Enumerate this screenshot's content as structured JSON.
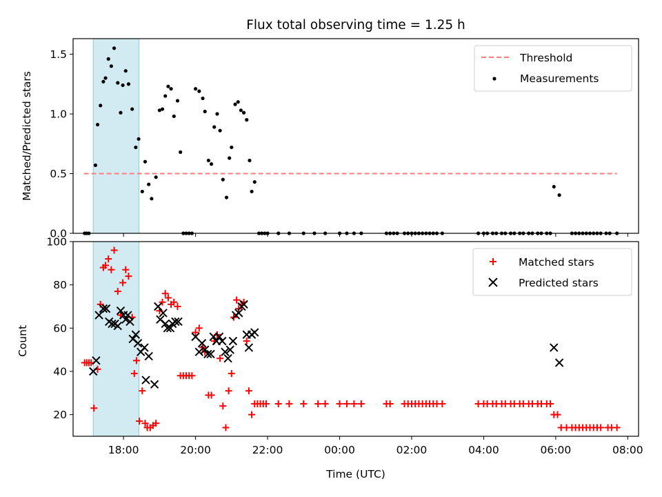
{
  "title": "Flux total observing time = 1.25 h",
  "x_tick_labels": [
    "18:00",
    "20:00",
    "22:00",
    "00:00",
    "02:00",
    "04:00",
    "06:00",
    "08:00"
  ],
  "xlabel": "Time (UTC)",
  "colors": {
    "threshold": "#ff7b7b",
    "measurements": "#000000",
    "matched": "#ff0000",
    "predicted": "#000000",
    "span": "#add8e6"
  },
  "chart_data": [
    {
      "type": "scatter",
      "ylabel": "Matched/Predicted stars",
      "xlim": [
        16.6,
        32.3
      ],
      "ylim": [
        0,
        1.63
      ],
      "yticks": [
        0.0,
        0.5,
        1.0,
        1.5
      ],
      "y_tick_labels": [
        "0.0",
        "0.5",
        "1.0",
        "1.5"
      ],
      "highlight_span": [
        17.16,
        18.43
      ],
      "legend": [
        "Threshold",
        "Measurements"
      ],
      "legend_position": "top-right",
      "threshold": {
        "value": 0.5,
        "x_range": [
          16.9,
          31.7
        ]
      },
      "measurements": [
        [
          16.92,
          0
        ],
        [
          16.98,
          0
        ],
        [
          17.04,
          0
        ],
        [
          17.22,
          0.57
        ],
        [
          17.28,
          0.91
        ],
        [
          17.36,
          1.07
        ],
        [
          17.44,
          1.27
        ],
        [
          17.5,
          1.3
        ],
        [
          17.58,
          1.46
        ],
        [
          17.66,
          1.4
        ],
        [
          17.74,
          1.55
        ],
        [
          17.84,
          1.26
        ],
        [
          17.92,
          1.01
        ],
        [
          17.98,
          1.24
        ],
        [
          18.06,
          1.36
        ],
        [
          18.14,
          1.25
        ],
        [
          18.24,
          1.04
        ],
        [
          18.34,
          0.72
        ],
        [
          18.42,
          0.79
        ],
        [
          18.52,
          0.35
        ],
        [
          18.6,
          0.6
        ],
        [
          18.7,
          0.41
        ],
        [
          18.78,
          0.29
        ],
        [
          18.9,
          0.47
        ],
        [
          19.0,
          1.03
        ],
        [
          19.08,
          1.04
        ],
        [
          19.16,
          1.15
        ],
        [
          19.24,
          1.23
        ],
        [
          19.32,
          1.21
        ],
        [
          19.4,
          0.98
        ],
        [
          19.5,
          1.11
        ],
        [
          19.58,
          0.68
        ],
        [
          19.66,
          0
        ],
        [
          19.74,
          0
        ],
        [
          19.82,
          0
        ],
        [
          19.9,
          0
        ],
        [
          20.0,
          1.21
        ],
        [
          20.1,
          1.19
        ],
        [
          20.2,
          1.13
        ],
        [
          20.26,
          1.02
        ],
        [
          20.36,
          0.61
        ],
        [
          20.44,
          0.58
        ],
        [
          20.52,
          0.89
        ],
        [
          20.6,
          1.0
        ],
        [
          20.68,
          0.86
        ],
        [
          20.76,
          0.45
        ],
        [
          20.86,
          0.3
        ],
        [
          20.94,
          0.63
        ],
        [
          21.0,
          0.72
        ],
        [
          21.1,
          1.08
        ],
        [
          21.18,
          1.1
        ],
        [
          21.26,
          1.03
        ],
        [
          21.34,
          1.01
        ],
        [
          21.42,
          0.95
        ],
        [
          21.5,
          0.61
        ],
        [
          21.56,
          0.35
        ],
        [
          21.64,
          0.43
        ],
        [
          21.76,
          0
        ],
        [
          21.84,
          0
        ],
        [
          21.92,
          0
        ],
        [
          22.0,
          0
        ],
        [
          22.3,
          0
        ],
        [
          22.6,
          0
        ],
        [
          23.0,
          0
        ],
        [
          23.3,
          0
        ],
        [
          23.6,
          0
        ],
        [
          24.0,
          0
        ],
        [
          24.2,
          0
        ],
        [
          24.4,
          0
        ],
        [
          24.6,
          0
        ],
        [
          25.3,
          0
        ],
        [
          25.4,
          0
        ],
        [
          25.5,
          0
        ],
        [
          25.6,
          0
        ],
        [
          25.8,
          0
        ],
        [
          25.9,
          0
        ],
        [
          26.0,
          0
        ],
        [
          26.1,
          0
        ],
        [
          26.2,
          0
        ],
        [
          26.3,
          0
        ],
        [
          26.4,
          0
        ],
        [
          26.5,
          0
        ],
        [
          26.6,
          0
        ],
        [
          26.7,
          0
        ],
        [
          26.85,
          0
        ],
        [
          27.85,
          0
        ],
        [
          28.0,
          0
        ],
        [
          28.1,
          0
        ],
        [
          28.25,
          0
        ],
        [
          28.35,
          0
        ],
        [
          28.5,
          0
        ],
        [
          28.6,
          0
        ],
        [
          28.75,
          0
        ],
        [
          28.85,
          0
        ],
        [
          29.0,
          0
        ],
        [
          29.1,
          0
        ],
        [
          29.25,
          0
        ],
        [
          29.35,
          0
        ],
        [
          29.5,
          0
        ],
        [
          29.6,
          0
        ],
        [
          29.75,
          0
        ],
        [
          29.85,
          0
        ],
        [
          29.95,
          0.39
        ],
        [
          30.1,
          0.32
        ],
        [
          30.45,
          0
        ],
        [
          30.55,
          0
        ],
        [
          30.65,
          0
        ],
        [
          30.75,
          0
        ],
        [
          30.85,
          0
        ],
        [
          30.95,
          0
        ],
        [
          31.05,
          0
        ],
        [
          31.15,
          0
        ],
        [
          31.25,
          0
        ],
        [
          31.4,
          0
        ],
        [
          31.5,
          0
        ],
        [
          31.7,
          0
        ]
      ]
    },
    {
      "type": "scatter",
      "ylabel": "Count",
      "xlim": [
        16.6,
        32.3
      ],
      "ylim": [
        10,
        100
      ],
      "yticks": [
        20,
        40,
        60,
        80,
        100
      ],
      "y_tick_labels": [
        "20",
        "40",
        "60",
        "80",
        "100"
      ],
      "highlight_span": [
        17.16,
        18.43
      ],
      "legend": [
        "Matched stars",
        "Predicted stars"
      ],
      "legend_position": "top-right",
      "matched": [
        [
          16.92,
          44
        ],
        [
          16.98,
          44
        ],
        [
          17.04,
          44
        ],
        [
          17.1,
          44
        ],
        [
          17.18,
          23
        ],
        [
          17.28,
          41
        ],
        [
          17.36,
          71
        ],
        [
          17.44,
          88
        ],
        [
          17.5,
          89
        ],
        [
          17.58,
          92
        ],
        [
          17.66,
          87
        ],
        [
          17.74,
          96
        ],
        [
          17.84,
          77
        ],
        [
          17.92,
          66
        ],
        [
          17.98,
          81
        ],
        [
          18.06,
          87
        ],
        [
          18.14,
          84
        ],
        [
          18.24,
          65
        ],
        [
          18.3,
          39
        ],
        [
          18.36,
          45
        ],
        [
          18.44,
          17
        ],
        [
          18.52,
          31
        ],
        [
          18.6,
          16
        ],
        [
          18.66,
          14
        ],
        [
          18.74,
          14
        ],
        [
          18.82,
          15
        ],
        [
          18.9,
          16
        ],
        [
          19.0,
          68
        ],
        [
          19.08,
          72
        ],
        [
          19.16,
          76
        ],
        [
          19.24,
          74
        ],
        [
          19.32,
          71
        ],
        [
          19.4,
          72
        ],
        [
          19.5,
          70
        ],
        [
          19.58,
          38
        ],
        [
          19.66,
          38
        ],
        [
          19.74,
          38
        ],
        [
          19.82,
          38
        ],
        [
          19.9,
          38
        ],
        [
          20.0,
          58
        ],
        [
          20.1,
          60
        ],
        [
          20.2,
          51
        ],
        [
          20.26,
          49
        ],
        [
          20.36,
          29
        ],
        [
          20.44,
          29
        ],
        [
          20.52,
          54
        ],
        [
          20.6,
          57
        ],
        [
          20.68,
          46
        ],
        [
          20.76,
          24
        ],
        [
          20.84,
          14
        ],
        [
          20.92,
          31
        ],
        [
          21.0,
          39
        ],
        [
          21.06,
          65
        ],
        [
          21.14,
          73
        ],
        [
          21.2,
          69
        ],
        [
          21.28,
          71
        ],
        [
          21.34,
          72
        ],
        [
          21.42,
          54
        ],
        [
          21.48,
          31
        ],
        [
          21.56,
          20
        ],
        [
          21.64,
          25
        ],
        [
          21.72,
          25
        ],
        [
          21.8,
          25
        ],
        [
          21.88,
          25
        ],
        [
          21.96,
          25
        ],
        [
          22.3,
          25
        ],
        [
          22.6,
          25
        ],
        [
          23.0,
          25
        ],
        [
          23.4,
          25
        ],
        [
          23.6,
          25
        ],
        [
          24.0,
          25
        ],
        [
          24.2,
          25
        ],
        [
          24.4,
          25
        ],
        [
          24.6,
          25
        ],
        [
          25.3,
          25
        ],
        [
          25.4,
          25
        ],
        [
          25.8,
          25
        ],
        [
          25.9,
          25
        ],
        [
          26.0,
          25
        ],
        [
          26.1,
          25
        ],
        [
          26.2,
          25
        ],
        [
          26.3,
          25
        ],
        [
          26.4,
          25
        ],
        [
          26.5,
          25
        ],
        [
          26.6,
          25
        ],
        [
          26.7,
          25
        ],
        [
          26.85,
          25
        ],
        [
          27.85,
          25
        ],
        [
          28.0,
          25
        ],
        [
          28.1,
          25
        ],
        [
          28.25,
          25
        ],
        [
          28.35,
          25
        ],
        [
          28.5,
          25
        ],
        [
          28.6,
          25
        ],
        [
          28.75,
          25
        ],
        [
          28.85,
          25
        ],
        [
          29.0,
          25
        ],
        [
          29.1,
          25
        ],
        [
          29.25,
          25
        ],
        [
          29.35,
          25
        ],
        [
          29.5,
          25
        ],
        [
          29.6,
          25
        ],
        [
          29.75,
          25
        ],
        [
          29.85,
          25
        ],
        [
          29.95,
          20
        ],
        [
          30.05,
          20
        ],
        [
          30.15,
          14
        ],
        [
          30.3,
          14
        ],
        [
          30.45,
          14
        ],
        [
          30.55,
          14
        ],
        [
          30.65,
          14
        ],
        [
          30.75,
          14
        ],
        [
          30.85,
          14
        ],
        [
          30.95,
          14
        ],
        [
          31.05,
          14
        ],
        [
          31.15,
          14
        ],
        [
          31.25,
          14
        ],
        [
          31.45,
          14
        ],
        [
          31.55,
          14
        ],
        [
          31.7,
          14
        ]
      ],
      "predicted": [
        [
          17.16,
          40
        ],
        [
          17.24,
          45
        ],
        [
          17.32,
          66
        ],
        [
          17.44,
          69
        ],
        [
          17.52,
          69
        ],
        [
          17.6,
          63
        ],
        [
          17.68,
          62
        ],
        [
          17.76,
          62
        ],
        [
          17.84,
          61
        ],
        [
          17.92,
          68
        ],
        [
          18.0,
          66
        ],
        [
          18.06,
          64
        ],
        [
          18.12,
          66
        ],
        [
          18.18,
          63
        ],
        [
          18.26,
          55
        ],
        [
          18.34,
          57
        ],
        [
          18.4,
          53
        ],
        [
          18.48,
          49
        ],
        [
          18.58,
          51
        ],
        [
          18.62,
          36
        ],
        [
          18.7,
          47
        ],
        [
          18.86,
          34
        ],
        [
          18.96,
          70
        ],
        [
          19.02,
          64
        ],
        [
          19.1,
          67
        ],
        [
          19.16,
          62
        ],
        [
          19.22,
          60
        ],
        [
          19.3,
          60
        ],
        [
          19.36,
          62
        ],
        [
          19.44,
          63
        ],
        [
          19.52,
          63
        ],
        [
          20.0,
          56
        ],
        [
          20.1,
          49
        ],
        [
          20.18,
          53
        ],
        [
          20.26,
          50
        ],
        [
          20.34,
          48
        ],
        [
          20.42,
          48
        ],
        [
          20.5,
          56
        ],
        [
          20.58,
          54
        ],
        [
          20.66,
          56
        ],
        [
          20.74,
          54
        ],
        [
          20.82,
          49
        ],
        [
          20.9,
          46
        ],
        [
          20.96,
          50
        ],
        [
          21.04,
          54
        ],
        [
          21.12,
          66
        ],
        [
          21.2,
          67
        ],
        [
          21.28,
          70
        ],
        [
          21.34,
          71
        ],
        [
          21.42,
          57
        ],
        [
          21.48,
          51
        ],
        [
          21.56,
          57
        ],
        [
          21.64,
          58
        ],
        [
          29.95,
          51
        ],
        [
          30.1,
          44
        ]
      ]
    }
  ]
}
